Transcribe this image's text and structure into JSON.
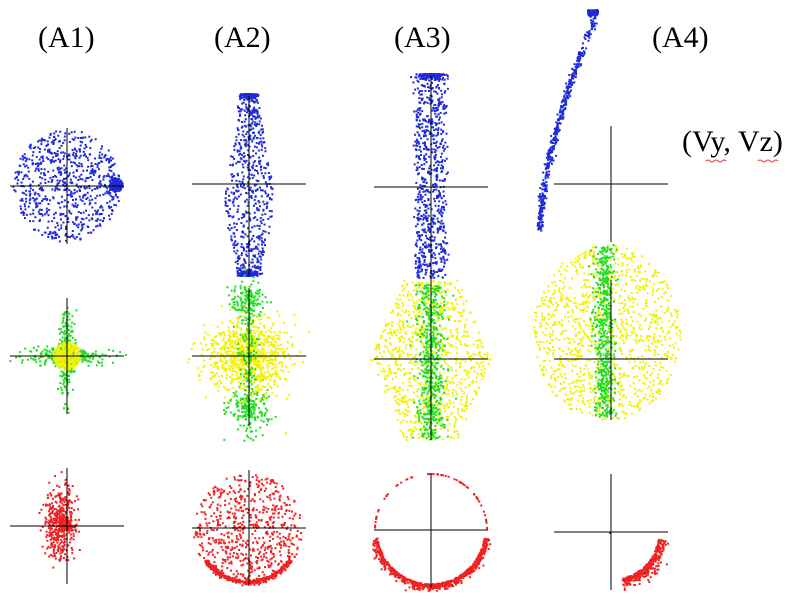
{
  "labels": {
    "col1": "(A1)",
    "col2": "(A2)",
    "col3": "(A3)",
    "col4": "(A4)",
    "side": "(Vy, Vz)"
  },
  "colors": {
    "blue": "#1f2bd8",
    "green": "#22dd22",
    "yellow": "#f2f200",
    "red": "#ee2222",
    "axis": "#000000",
    "spellcheck": "#e23b3b"
  }
}
